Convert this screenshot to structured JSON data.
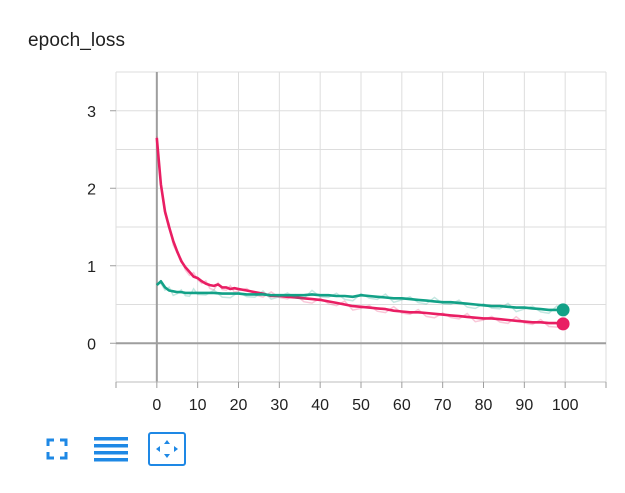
{
  "card": {
    "title": "epoch_loss"
  },
  "chart_data": {
    "type": "line",
    "title": "epoch_loss",
    "xlabel": "",
    "ylabel": "",
    "xlim": [
      -10,
      110
    ],
    "ylim": [
      -0.5,
      3.5
    ],
    "x_ticks": [
      0,
      10,
      20,
      30,
      40,
      50,
      60,
      70,
      80,
      90,
      100
    ],
    "y_ticks": [
      0,
      1,
      2,
      3
    ],
    "grid": true,
    "series": [
      {
        "color": "#e91e63",
        "points": [
          [
            0,
            2.65
          ],
          [
            1,
            2.05
          ],
          [
            2,
            1.7
          ],
          [
            3,
            1.5
          ],
          [
            4,
            1.32
          ],
          [
            5,
            1.18
          ],
          [
            6,
            1.06
          ],
          [
            7,
            0.98
          ],
          [
            8,
            0.92
          ],
          [
            9,
            0.86
          ],
          [
            10,
            0.84
          ],
          [
            11,
            0.8
          ],
          [
            12,
            0.77
          ],
          [
            13,
            0.75
          ],
          [
            14,
            0.74
          ],
          [
            15,
            0.76
          ],
          [
            16,
            0.72
          ],
          [
            17,
            0.72
          ],
          [
            18,
            0.7
          ],
          [
            19,
            0.71
          ],
          [
            20,
            0.7
          ],
          [
            22,
            0.68
          ],
          [
            24,
            0.66
          ],
          [
            26,
            0.64
          ],
          [
            28,
            0.61
          ],
          [
            30,
            0.61
          ],
          [
            32,
            0.6
          ],
          [
            34,
            0.59
          ],
          [
            36,
            0.58
          ],
          [
            38,
            0.57
          ],
          [
            40,
            0.56
          ],
          [
            42,
            0.54
          ],
          [
            44,
            0.52
          ],
          [
            46,
            0.5
          ],
          [
            48,
            0.48
          ],
          [
            50,
            0.47
          ],
          [
            52,
            0.46
          ],
          [
            54,
            0.45
          ],
          [
            56,
            0.44
          ],
          [
            58,
            0.42
          ],
          [
            60,
            0.41
          ],
          [
            62,
            0.4
          ],
          [
            64,
            0.4
          ],
          [
            66,
            0.39
          ],
          [
            68,
            0.38
          ],
          [
            70,
            0.37
          ],
          [
            72,
            0.36
          ],
          [
            74,
            0.35
          ],
          [
            76,
            0.34
          ],
          [
            78,
            0.33
          ],
          [
            80,
            0.32
          ],
          [
            82,
            0.32
          ],
          [
            84,
            0.31
          ],
          [
            86,
            0.3
          ],
          [
            88,
            0.29
          ],
          [
            90,
            0.28
          ],
          [
            92,
            0.27
          ],
          [
            94,
            0.27
          ],
          [
            96,
            0.26
          ],
          [
            98,
            0.26
          ],
          [
            99,
            0.25
          ]
        ]
      },
      {
        "color": "#12a187",
        "points": [
          [
            0,
            0.75
          ],
          [
            1,
            0.8
          ],
          [
            2,
            0.72
          ],
          [
            3,
            0.68
          ],
          [
            4,
            0.67
          ],
          [
            5,
            0.66
          ],
          [
            6,
            0.66
          ],
          [
            7,
            0.65
          ],
          [
            8,
            0.65
          ],
          [
            9,
            0.65
          ],
          [
            10,
            0.65
          ],
          [
            12,
            0.65
          ],
          [
            14,
            0.65
          ],
          [
            16,
            0.64
          ],
          [
            18,
            0.64
          ],
          [
            20,
            0.64
          ],
          [
            22,
            0.63
          ],
          [
            24,
            0.63
          ],
          [
            26,
            0.63
          ],
          [
            28,
            0.62
          ],
          [
            30,
            0.62
          ],
          [
            32,
            0.62
          ],
          [
            34,
            0.62
          ],
          [
            36,
            0.62
          ],
          [
            38,
            0.63
          ],
          [
            40,
            0.62
          ],
          [
            42,
            0.62
          ],
          [
            44,
            0.61
          ],
          [
            46,
            0.61
          ],
          [
            48,
            0.6
          ],
          [
            50,
            0.62
          ],
          [
            52,
            0.61
          ],
          [
            54,
            0.6
          ],
          [
            56,
            0.59
          ],
          [
            58,
            0.58
          ],
          [
            60,
            0.58
          ],
          [
            62,
            0.57
          ],
          [
            64,
            0.56
          ],
          [
            66,
            0.55
          ],
          [
            68,
            0.54
          ],
          [
            70,
            0.53
          ],
          [
            72,
            0.53
          ],
          [
            74,
            0.52
          ],
          [
            76,
            0.51
          ],
          [
            78,
            0.5
          ],
          [
            80,
            0.49
          ],
          [
            82,
            0.48
          ],
          [
            84,
            0.48
          ],
          [
            86,
            0.47
          ],
          [
            88,
            0.46
          ],
          [
            90,
            0.46
          ],
          [
            92,
            0.45
          ],
          [
            94,
            0.44
          ],
          [
            96,
            0.43
          ],
          [
            98,
            0.43
          ],
          [
            99,
            0.43
          ]
        ]
      }
    ]
  },
  "toolbar": {
    "buttons": [
      {
        "icon": "fullscreen-icon",
        "color": "#1e88e5"
      },
      {
        "icon": "list-lines-icon",
        "color": "#1e88e5"
      },
      {
        "icon": "fit-domain-icon",
        "color": "#1e88e5"
      }
    ]
  }
}
